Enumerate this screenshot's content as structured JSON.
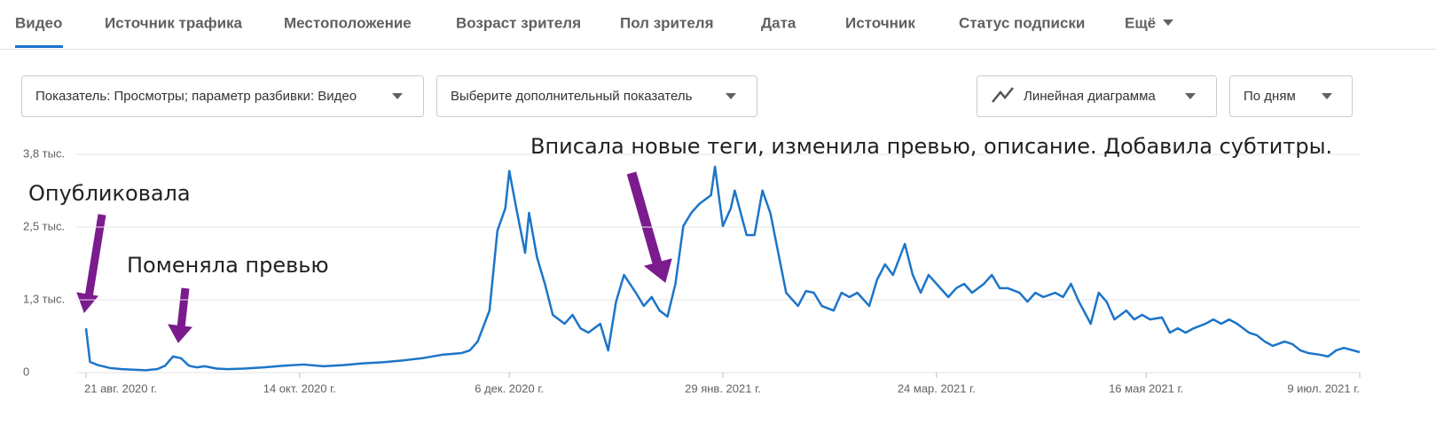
{
  "tabs": [
    "Видео",
    "Источник трафика",
    "Местоположение",
    "Возраст зрителя",
    "Пол зрителя",
    "Дата",
    "Источник",
    "Статус подписки",
    "Ещё"
  ],
  "controls": [
    "Показатель: Просмотры; параметр разбивки: Видео",
    "Выберите дополнительный показатель",
    "Линейная диаграмма",
    "По дням"
  ],
  "chart_data": {
    "type": "line",
    "annotations": [
      "Опубликовала",
      "Поменяла превью",
      "Вписала новые теги, изменила превью, описание. Добавила субтитры."
    ],
    "color": "#1c75c8",
    "x": [
      0,
      1,
      3,
      6,
      9,
      12,
      15,
      18,
      20,
      22,
      24,
      26,
      28,
      30,
      33,
      36,
      40,
      45,
      50,
      55,
      60,
      65,
      70,
      75,
      80,
      85,
      90,
      95,
      97,
      99,
      102,
      104,
      106,
      107,
      109,
      111,
      112,
      114,
      116,
      118,
      121,
      123,
      125,
      127,
      130,
      132,
      134,
      136,
      139,
      141,
      143,
      145,
      147,
      149,
      151,
      153,
      155,
      158,
      159,
      161,
      163,
      164,
      167,
      169,
      171,
      173,
      175,
      177,
      180,
      182,
      184,
      186,
      189,
      191,
      193,
      195,
      198,
      200,
      202,
      204,
      207,
      209,
      211,
      213,
      215,
      218,
      220,
      222,
      224,
      227,
      229,
      231,
      233,
      236,
      238,
      240,
      242,
      245,
      247,
      249,
      251,
      254,
      256,
      258,
      260,
      263,
      265,
      267,
      269,
      272,
      274,
      276,
      278,
      280,
      283,
      285,
      287,
      289,
      291,
      294,
      296,
      298,
      300,
      303,
      305,
      307,
      309,
      312,
      314,
      316,
      318,
      322
    ],
    "values": [
      770,
      185,
      130,
      80,
      60,
      50,
      40,
      60,
      120,
      280,
      250,
      120,
      90,
      110,
      70,
      60,
      70,
      90,
      120,
      140,
      110,
      130,
      160,
      180,
      210,
      250,
      310,
      340,
      385,
      540,
      1080,
      2470,
      2860,
      3510,
      2780,
      2085,
      2780,
      2010,
      1545,
      1005,
      850,
      1005,
      770,
      695,
      850,
      385,
      1235,
      1700,
      1390,
      1160,
      1315,
      1080,
      975,
      1545,
      2550,
      2780,
      2935,
      3090,
      3585,
      2550,
      2860,
      3170,
      2395,
      2395,
      3170,
      2780,
      2085,
      1390,
      1160,
      1420,
      1390,
      1160,
      1080,
      1390,
      1315,
      1390,
      1160,
      1620,
      1885,
      1700,
      2240,
      1700,
      1390,
      1700,
      1545,
      1315,
      1470,
      1545,
      1390,
      1545,
      1700,
      1470,
      1470,
      1390,
      1235,
      1390,
      1315,
      1390,
      1315,
      1545,
      1235,
      850,
      1390,
      1235,
      925,
      1080,
      925,
      1005,
      925,
      960,
      695,
      770,
      695,
      770,
      850,
      925,
      850,
      925,
      850,
      695,
      650,
      540,
      465,
      540,
      495,
      385,
      340,
      310,
      280,
      385,
      430,
      355
    ],
    "xlim": [
      0,
      322
    ],
    "xticks": [
      {
        "value": 0,
        "label": "21 авг. 2020 г."
      },
      {
        "value": 54,
        "label": "14 окт. 2020 г."
      },
      {
        "value": 107,
        "label": "6 дек. 2020 г."
      },
      {
        "value": 161,
        "label": "29 янв. 2021 г."
      },
      {
        "value": 215,
        "label": "24 мар. 2021 г."
      },
      {
        "value": 268,
        "label": "16 мая 2021 г."
      },
      {
        "value": 322,
        "label": "9 июл. 2021 г."
      }
    ],
    "ylim": [
      0,
      3800
    ],
    "yticks": [
      0,
      {
        "value": 1267,
        "label": "1,3 тыс."
      },
      {
        "value": 2533,
        "label": "2,5 тыс."
      },
      {
        "value": 3800,
        "label": "3,8 тыс."
      }
    ],
    "grid": true
  }
}
